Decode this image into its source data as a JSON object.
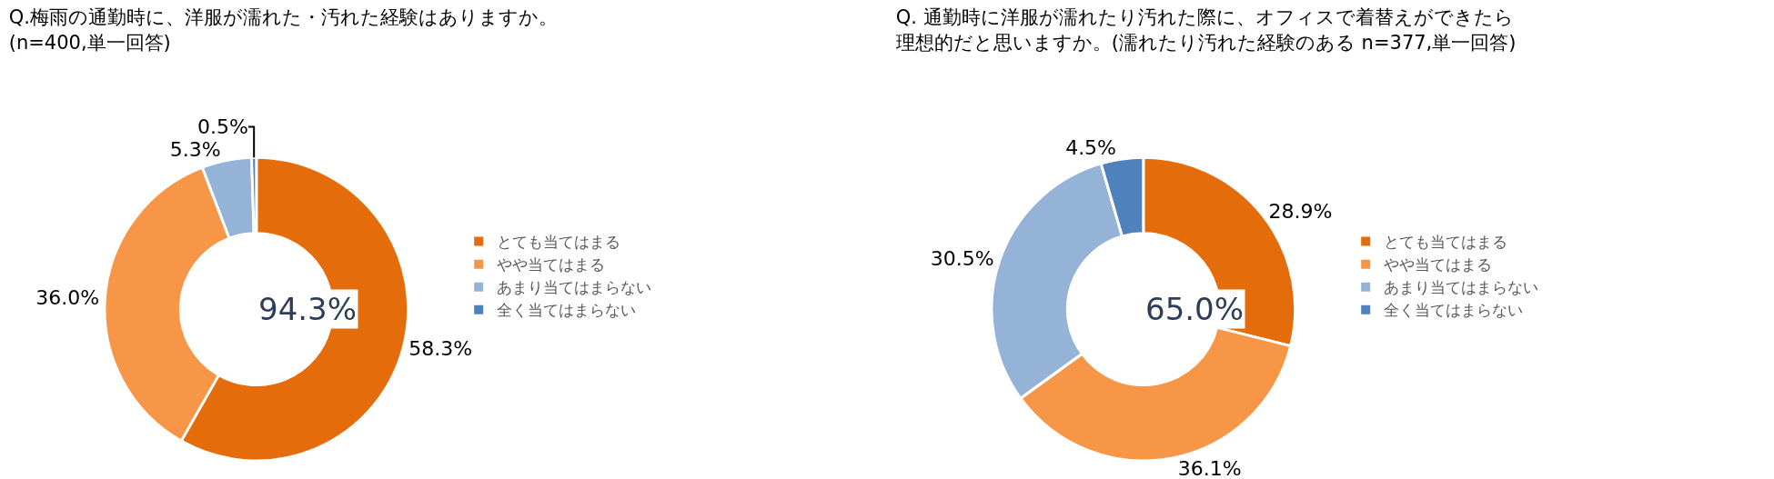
{
  "chart_data": [
    {
      "type": "donut",
      "title": "Q.梅雨の通勤時に、洋服が濡れた・汚れた経験はありますか。",
      "subtitle": "(n=400,単一回答)",
      "categories": [
        "とても当てはまる",
        "やや当てはまる",
        "あまり当てはまらない",
        "全く当てはまらない"
      ],
      "values": [
        58.3,
        36.0,
        5.3,
        0.5
      ],
      "value_labels": [
        "58.3%",
        "36.0%",
        "5.3%",
        "0.5%"
      ],
      "colors": [
        "#e46c0a",
        "#f79646",
        "#95b3d7",
        "#4f81bd"
      ],
      "annotations": [
        "94.3%"
      ],
      "legend": "right"
    },
    {
      "type": "donut",
      "title": "Q. 通勤時に洋服が濡れたり汚れた際に、オフィスで着替えができたら",
      "subtitle": "理想的だと思いますか。(濡れたり汚れた経験のある n=377,単一回答)",
      "categories": [
        "とても当てはまる",
        "やや当てはまる",
        "あまり当てはまらない",
        "全く当てはまらない"
      ],
      "values": [
        28.9,
        36.1,
        30.5,
        4.5
      ],
      "value_labels": [
        "28.9%",
        "36.1%",
        "30.5%",
        "4.5%"
      ],
      "colors": [
        "#e46c0a",
        "#f79646",
        "#95b3d7",
        "#4f81bd"
      ],
      "annotations": [
        "65.0%"
      ],
      "legend": "right"
    }
  ]
}
